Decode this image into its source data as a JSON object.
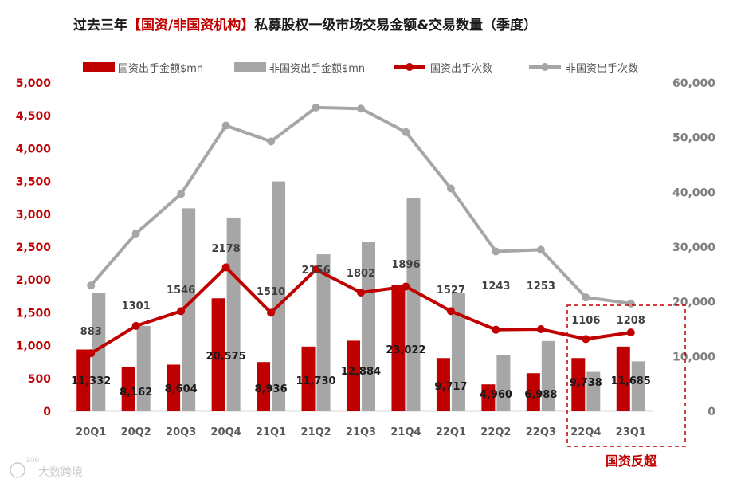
{
  "chart_data": {
    "type": "bar",
    "title_prefix": "过去三年",
    "title_highlight": "【国资/非国资机构】",
    "title_suffix": "私募股权一级市场交易金额&交易数量（季度）",
    "categories": [
      "20Q1",
      "20Q2",
      "20Q3",
      "20Q4",
      "21Q1",
      "21Q2",
      "21Q3",
      "21Q4",
      "22Q1",
      "22Q2",
      "22Q3",
      "22Q4",
      "23Q1"
    ],
    "series": [
      {
        "name": "国资出手金额$mn",
        "kind": "bar",
        "axis": "left",
        "color": "#c00000",
        "values": [
          940,
          680,
          710,
          1720,
          750,
          985,
          1075,
          1920,
          810,
          410,
          580,
          810,
          985
        ]
      },
      {
        "name": "非国资出手金额$mn",
        "kind": "bar",
        "axis": "left",
        "color": "#a6a6a6",
        "values": [
          1800,
          1300,
          3090,
          2950,
          3500,
          2390,
          2580,
          3240,
          1800,
          860,
          1070,
          600,
          760
        ]
      },
      {
        "name": "国资出手次数",
        "kind": "line",
        "axis": "right",
        "color": "#c00000",
        "values": [
          10600,
          15600,
          18300,
          26300,
          18000,
          25900,
          21700,
          22800,
          18300,
          14900,
          15000,
          13200,
          14400
        ]
      },
      {
        "name": "非国资出手次数",
        "kind": "line",
        "axis": "right",
        "color": "#a6a6a6",
        "values": [
          23000,
          32500,
          39700,
          52200,
          49300,
          55500,
          55300,
          51000,
          40700,
          29200,
          29500,
          20800,
          19700
        ]
      }
    ],
    "labels_nonstate_count": [
      "883",
      "1301",
      "1546",
      "2178",
      "1510",
      "2156",
      "1802",
      "1896",
      "1527",
      "1243",
      "1253",
      "1106",
      "1208"
    ],
    "labels_state_count": [
      "11,332",
      "8,162",
      "8,604",
      "20,575",
      "8,936",
      "11,730",
      "12,884",
      "23,022",
      "9,717",
      "4,960",
      "6,988",
      "9,738",
      "11,685"
    ],
    "y_left": {
      "min": 0,
      "max": 5000,
      "ticks": [
        "0",
        "500",
        "1,000",
        "1,500",
        "2,000",
        "2,500",
        "3,000",
        "3,500",
        "4,000",
        "4,500",
        "5,000"
      ]
    },
    "y_right": {
      "min": 0,
      "max": 60000,
      "ticks": [
        "0",
        "10,000",
        "20,000",
        "30,000",
        "40,000",
        "50,000",
        "60,000"
      ]
    },
    "annotation": "国资反超",
    "watermark": "大数跨境",
    "watermark_badge": "100",
    "colors": {
      "state": "#c00000",
      "nonstate_bar": "#a6a6a6",
      "nonstate_line": "#a6a6a6",
      "title": "#1a1a1a",
      "highlight": "#c00000"
    }
  }
}
